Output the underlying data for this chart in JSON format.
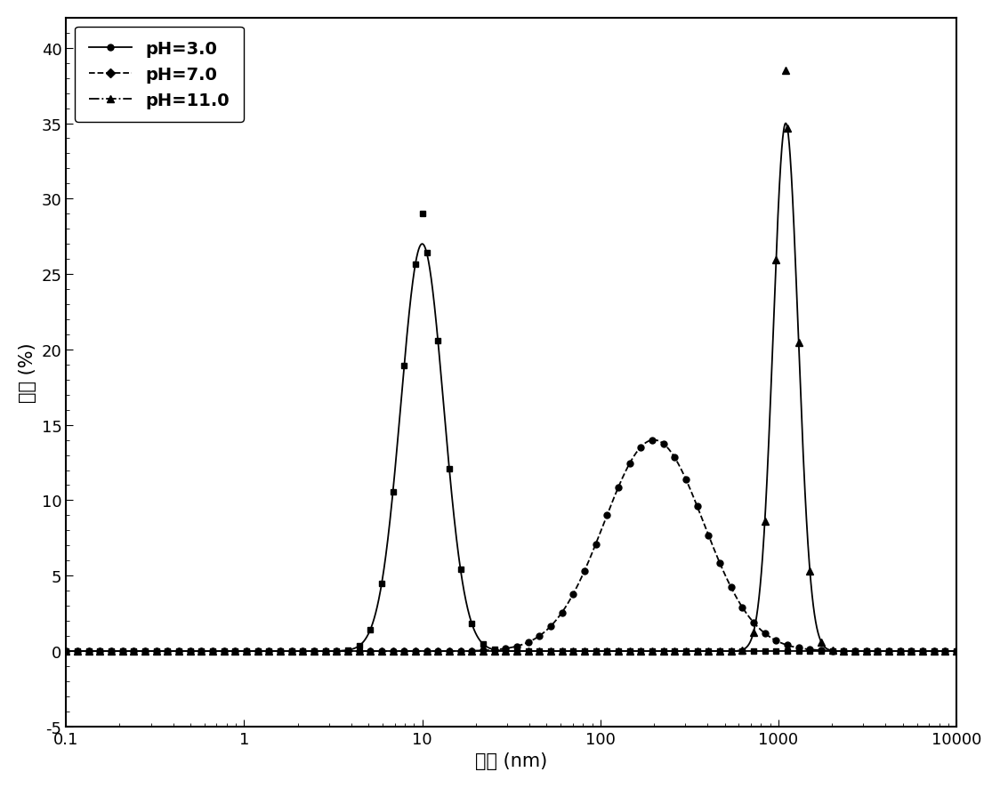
{
  "title": "",
  "xlabel": "尺寸 (nm)",
  "ylabel": "强度 (%)",
  "xlim": [
    0.1,
    10000
  ],
  "ylim": [
    -5,
    42
  ],
  "yticks": [
    -5,
    0,
    5,
    10,
    15,
    20,
    25,
    30,
    35,
    40
  ],
  "series": [
    {
      "name": "pH=3.0",
      "linestyle": "-",
      "curve_marker": "s",
      "legend_marker": "o",
      "markersize": 5,
      "color": "#000000",
      "peak_x": 10,
      "peak_y": 27,
      "sigma": 0.12,
      "marker_count": 80,
      "extra_marker_y": 29.0
    },
    {
      "name": "pH=7.0",
      "linestyle": "--",
      "curve_marker": "o",
      "legend_marker": "D",
      "markersize": 5,
      "color": "#000000",
      "peak_x": 200,
      "peak_y": 14,
      "sigma": 0.28,
      "marker_count": 80,
      "extra_marker_y": null
    },
    {
      "name": "pH=11.0",
      "linestyle": "-",
      "curve_marker": "^",
      "legend_marker": "^",
      "markersize": 6,
      "color": "#000000",
      "peak_x": 1100,
      "peak_y": 35,
      "sigma": 0.07,
      "marker_count": 80,
      "extra_marker_y": 38.5
    }
  ],
  "background_color": "#ffffff",
  "figsize": [
    11.24,
    8.87
  ],
  "dpi": 100,
  "legend_fontsize": 14,
  "tick_labelsize": 13,
  "axis_labelsize": 15
}
